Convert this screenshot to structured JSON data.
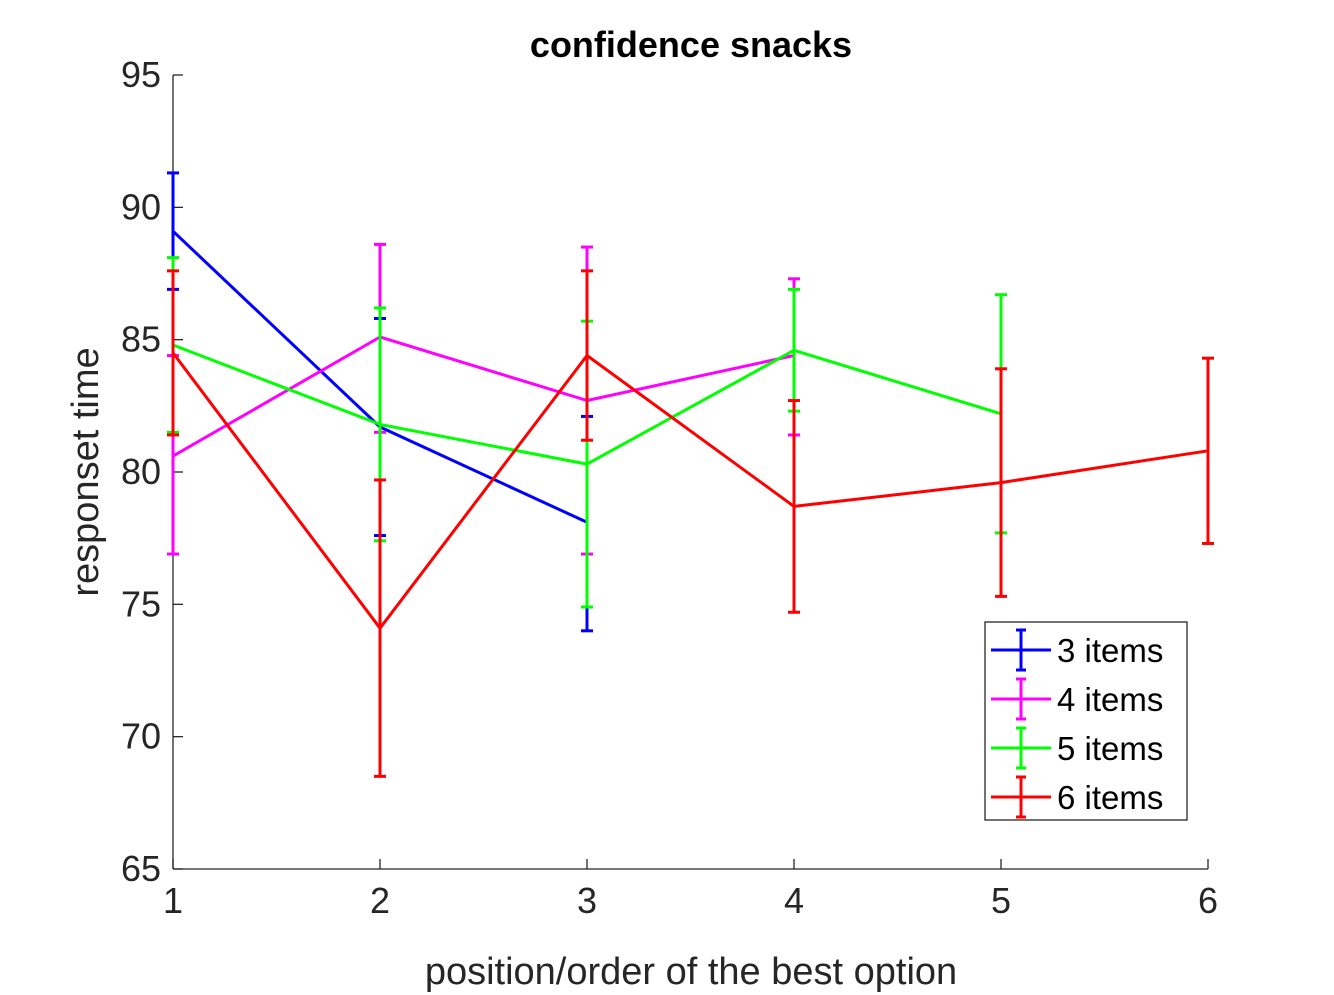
{
  "chart_data": {
    "type": "line",
    "title": "confidence snacks",
    "xlabel": "position/order of the best option",
    "ylabel": "responset time",
    "xlim": [
      1,
      6
    ],
    "ylim": [
      65,
      95
    ],
    "xticks": [
      1,
      2,
      3,
      4,
      5,
      6
    ],
    "yticks": [
      65,
      70,
      75,
      80,
      85,
      90,
      95
    ],
    "grid": false,
    "legend_position": "bottom-right",
    "series": [
      {
        "name": "3 items",
        "color": "#0000ff",
        "x": [
          1,
          2,
          3
        ],
        "y": [
          89.1,
          81.7,
          78.1
        ],
        "lower": [
          86.9,
          77.6,
          74.0
        ],
        "upper": [
          91.3,
          85.8,
          82.1
        ]
      },
      {
        "name": "4 items",
        "color": "#ff00ff",
        "x": [
          1,
          2,
          3,
          4
        ],
        "y": [
          80.6,
          85.1,
          82.7,
          84.4
        ],
        "lower": [
          76.9,
          81.5,
          76.9,
          81.4
        ],
        "upper": [
          84.4,
          88.6,
          88.5,
          87.3
        ]
      },
      {
        "name": "5 items",
        "color": "#00ff00",
        "x": [
          1,
          2,
          3,
          4,
          5
        ],
        "y": [
          84.8,
          81.8,
          80.3,
          84.6,
          82.2
        ],
        "lower": [
          81.5,
          77.4,
          74.9,
          82.3,
          77.7
        ],
        "upper": [
          88.1,
          86.2,
          85.7,
          86.9,
          86.7
        ]
      },
      {
        "name": "6 items",
        "color": "#ff0000",
        "x": [
          1,
          2,
          3,
          4,
          5,
          6
        ],
        "y": [
          84.5,
          74.1,
          84.4,
          78.7,
          79.6,
          80.8
        ],
        "lower": [
          81.4,
          68.5,
          81.2,
          74.7,
          75.3,
          77.3
        ],
        "upper": [
          87.6,
          79.7,
          87.6,
          82.7,
          83.9,
          84.3
        ]
      }
    ]
  }
}
